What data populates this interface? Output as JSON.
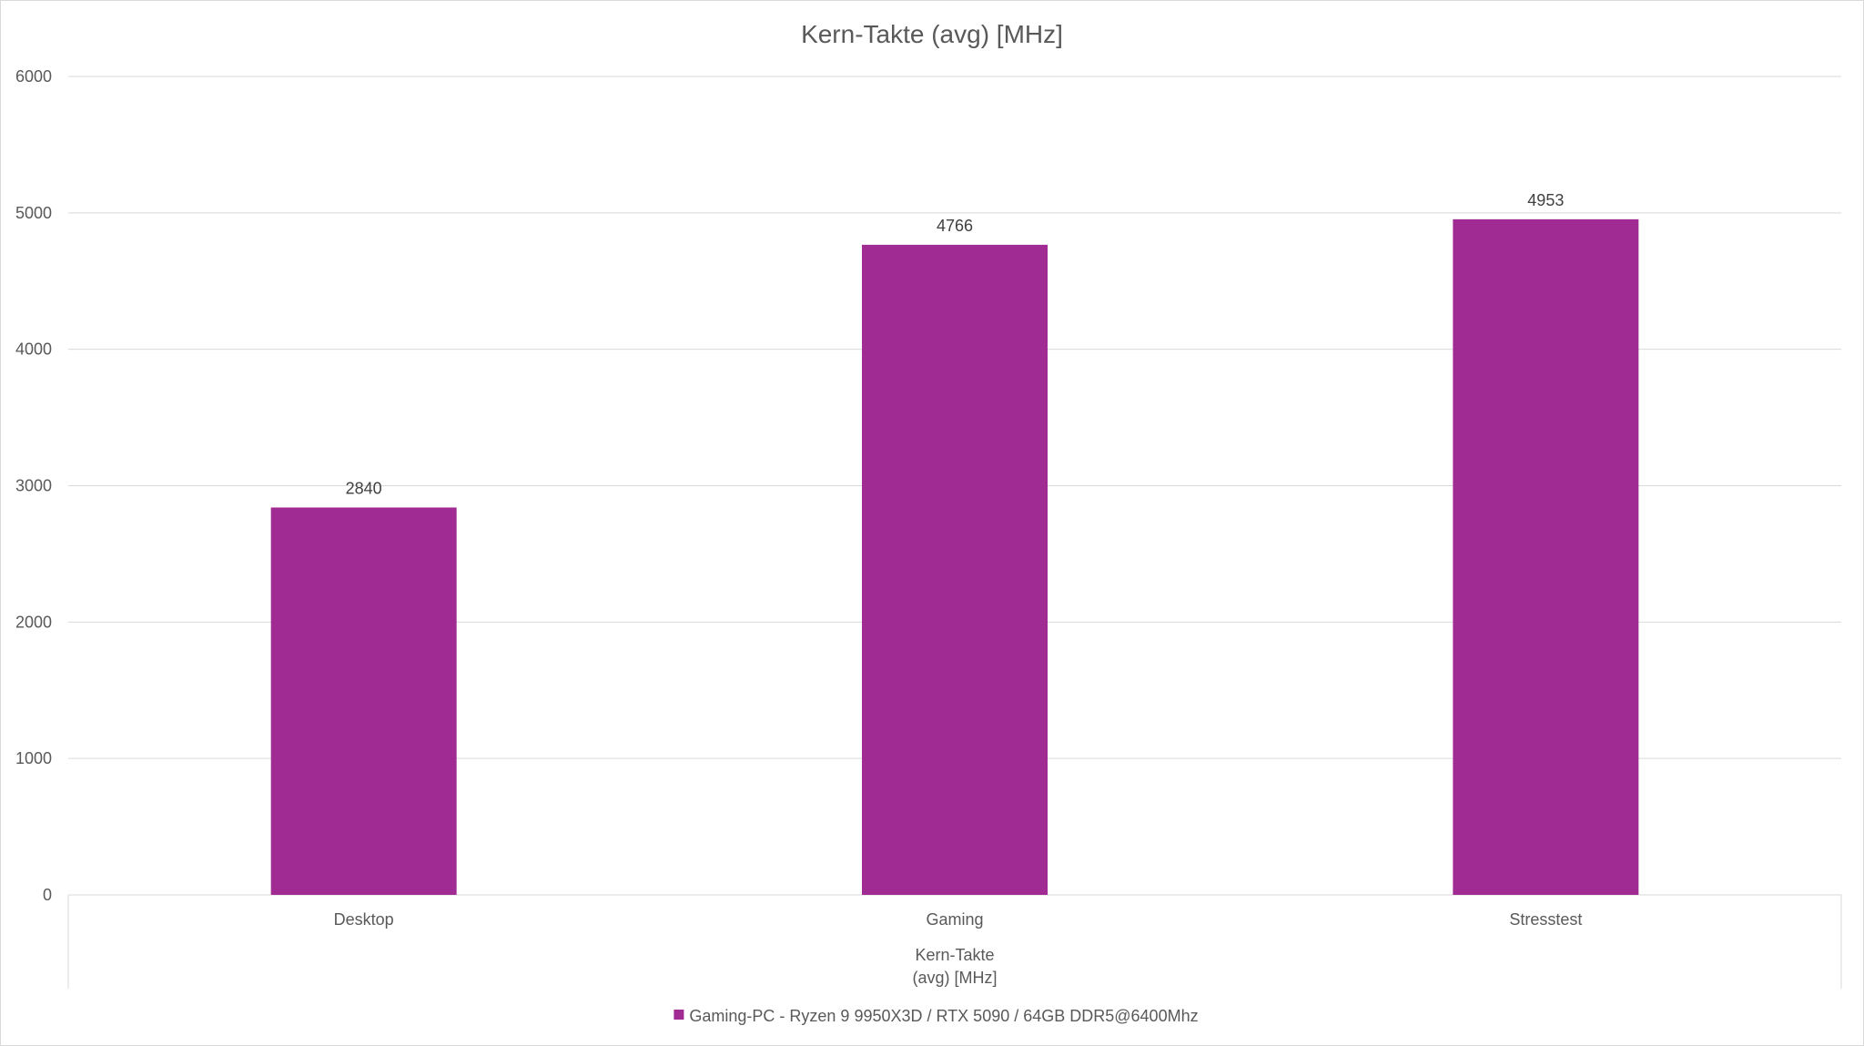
{
  "chart_data": {
    "type": "bar",
    "title": "Kern-Takte (avg) [MHz]",
    "categories": [
      "Desktop",
      "Gaming",
      "Stresstest"
    ],
    "series": [
      {
        "name": "Gaming-PC - Ryzen 9 9950X3D / RTX 5090 / 64GB DDR5@6400Mhz",
        "values": [
          2840,
          4766,
          4953
        ],
        "color": "#a02b93"
      }
    ],
    "group_label_lines": [
      "Kern-Takte",
      "(avg) [MHz]"
    ],
    "yticks": [
      "0",
      "1000",
      "2000",
      "3000",
      "4000",
      "5000",
      "6000"
    ],
    "ylim": [
      0,
      6000
    ],
    "grid": true,
    "legend": "bottom",
    "data_labels": true
  }
}
